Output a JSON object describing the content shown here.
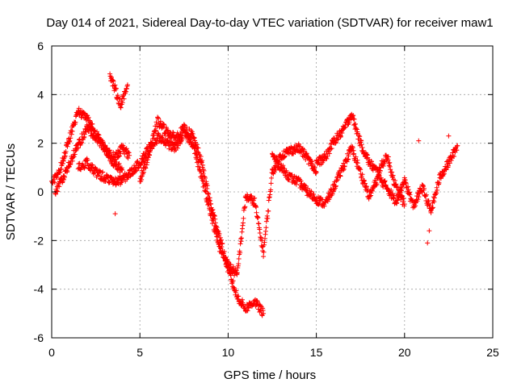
{
  "chart_data": {
    "type": "scatter",
    "title": "Day 014 of 2021, Sidereal Day-to-day VTEC variation (SDTVAR) for receiver maw1",
    "xlabel": "GPS time / hours",
    "ylabel": "SDTVAR / TECUs",
    "xlim": [
      0,
      25
    ],
    "ylim": [
      -6,
      6
    ],
    "x_ticks": [
      0,
      5,
      10,
      15,
      20,
      25
    ],
    "y_ticks": [
      -6,
      -4,
      -2,
      0,
      2,
      4,
      6
    ],
    "x_tick_labels": [
      "0",
      "5",
      "10",
      "15",
      "20",
      "25"
    ],
    "y_tick_labels": [
      "-6",
      "-4",
      "-2",
      "0",
      "2",
      "4",
      "6"
    ],
    "grid": true,
    "marker": "+",
    "series_color": "#ff0000",
    "series": [
      {
        "name": "SDTVAR",
        "description_points": "approximate trace of the dominant bands read from the figure",
        "tracks": [
          {
            "name": "track-a",
            "x": [
              0,
              0.5,
              1,
              1.5,
              2,
              2.5,
              3,
              3.5,
              4
            ],
            "y": [
              0.3,
              1.0,
              2.2,
              3.3,
              3.0,
              2.4,
              1.8,
              1.2,
              0.9
            ]
          },
          {
            "name": "track-b",
            "x": [
              0.2,
              0.8,
              1.4,
              2.0,
              2.6,
              3.2,
              3.6,
              4.0,
              4.4
            ],
            "y": [
              0.0,
              0.8,
              1.8,
              2.6,
              2.2,
              1.6,
              1.4,
              1.8,
              1.5
            ]
          },
          {
            "name": "track-c",
            "x": [
              1.5,
              2.0,
              2.5,
              3.0,
              3.5,
              4.0,
              4.5,
              5.0,
              5.5,
              6.0
            ],
            "y": [
              1.0,
              1.2,
              0.8,
              0.6,
              0.4,
              0.5,
              0.8,
              1.2,
              1.8,
              2.2
            ]
          },
          {
            "name": "track-d",
            "x": [
              3.3,
              3.5,
              3.7,
              3.9,
              4.1,
              4.3
            ],
            "y": [
              4.8,
              4.4,
              4.0,
              3.6,
              3.9,
              4.4
            ]
          },
          {
            "name": "track-e",
            "x": [
              5.0,
              5.5,
              6.0,
              6.5,
              7.0,
              7.5,
              8.0,
              8.5,
              9.0,
              9.5,
              10.0,
              10.5,
              11.0,
              11.5,
              12.0
            ],
            "y": [
              0.5,
              1.5,
              2.9,
              2.5,
              2.2,
              2.6,
              2.3,
              1.2,
              -0.5,
              -1.8,
              -3.2,
              -4.3,
              -4.8,
              -4.5,
              -5.0
            ]
          },
          {
            "name": "track-f",
            "x": [
              6.0,
              6.5,
              7.0,
              7.5,
              8.0,
              8.5,
              9.0,
              9.5,
              10.0,
              10.5
            ],
            "y": [
              2.3,
              2.0,
              1.8,
              2.4,
              2.0,
              0.6,
              -0.8,
              -2.3,
              -3.0,
              -3.4
            ]
          },
          {
            "name": "track-g",
            "x": [
              10.5,
              11.0,
              11.5,
              12.0,
              12.5,
              13.0,
              13.5,
              14.0,
              14.5,
              15.0
            ],
            "y": [
              -3.5,
              -0.2,
              -0.4,
              -2.5,
              0.8,
              1.5,
              1.7,
              1.8,
              1.4,
              0.8
            ]
          },
          {
            "name": "track-h",
            "x": [
              12.5,
              13.0,
              13.5,
              14.0,
              14.5,
              15.0,
              15.5,
              16.0,
              16.5,
              17.0,
              17.5,
              18.0,
              18.5,
              19.0,
              19.5,
              20.0
            ],
            "y": [
              1.5,
              1.0,
              0.6,
              0.4,
              0.0,
              -0.3,
              -0.5,
              0.2,
              1.0,
              1.8,
              0.8,
              -0.2,
              0.6,
              0.2,
              -0.4,
              0.5
            ]
          },
          {
            "name": "track-i",
            "x": [
              15.0,
              15.5,
              16.0,
              16.5,
              17.0,
              17.5,
              18.0,
              18.5,
              19.0,
              19.5,
              20.0
            ],
            "y": [
              1.2,
              1.4,
              2.1,
              2.5,
              3.2,
              2.0,
              1.2,
              0.8,
              1.5,
              0.2,
              -0.5
            ]
          },
          {
            "name": "track-j",
            "x": [
              20.0,
              20.5,
              21.0,
              21.5,
              22.0,
              22.5,
              23.0
            ],
            "y": [
              0.5,
              -0.6,
              0.2,
              -0.8,
              0.6,
              1.2,
              1.9
            ]
          }
        ],
        "outliers": [
          {
            "x": 3.6,
            "y": -0.9
          },
          {
            "x": 21.3,
            "y": -2.1
          },
          {
            "x": 21.4,
            "y": -1.6
          },
          {
            "x": 20.8,
            "y": 2.1
          },
          {
            "x": 22.5,
            "y": 2.3
          }
        ]
      }
    ]
  }
}
